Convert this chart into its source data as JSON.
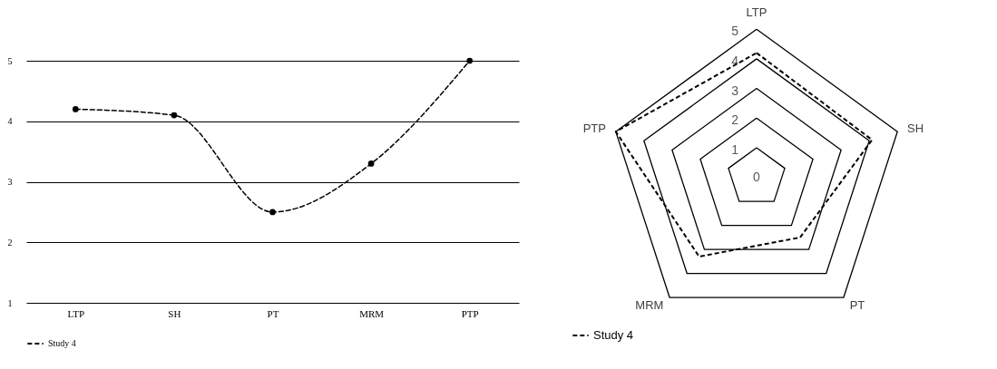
{
  "chart_data": [
    {
      "type": "line",
      "categories": [
        "LTP",
        "SH",
        "PT",
        "MRM",
        "PTP"
      ],
      "series": [
        {
          "name": "Study 4",
          "color": "#000000",
          "values": [
            4.2,
            4.1,
            2.5,
            3.3,
            5
          ]
        }
      ],
      "ylim": [
        1,
        5
      ],
      "yticks": [
        1,
        2,
        3,
        4,
        5
      ],
      "grid": "y",
      "legend": "bottom",
      "marker": "circle",
      "line_style": "dashed"
    },
    {
      "type": "radar",
      "categories": [
        "LTP",
        "SH",
        "PT",
        "MRM",
        "PTP"
      ],
      "series": [
        {
          "name": "Study 4",
          "color": "#000000",
          "values": [
            4.2,
            4.1,
            2.5,
            3.3,
            5
          ]
        }
      ],
      "ylim": [
        0,
        5
      ],
      "yticks": [
        0,
        1,
        2,
        3,
        4,
        5
      ],
      "grid": true,
      "legend": "bottom",
      "line_style": "dashed"
    }
  ]
}
